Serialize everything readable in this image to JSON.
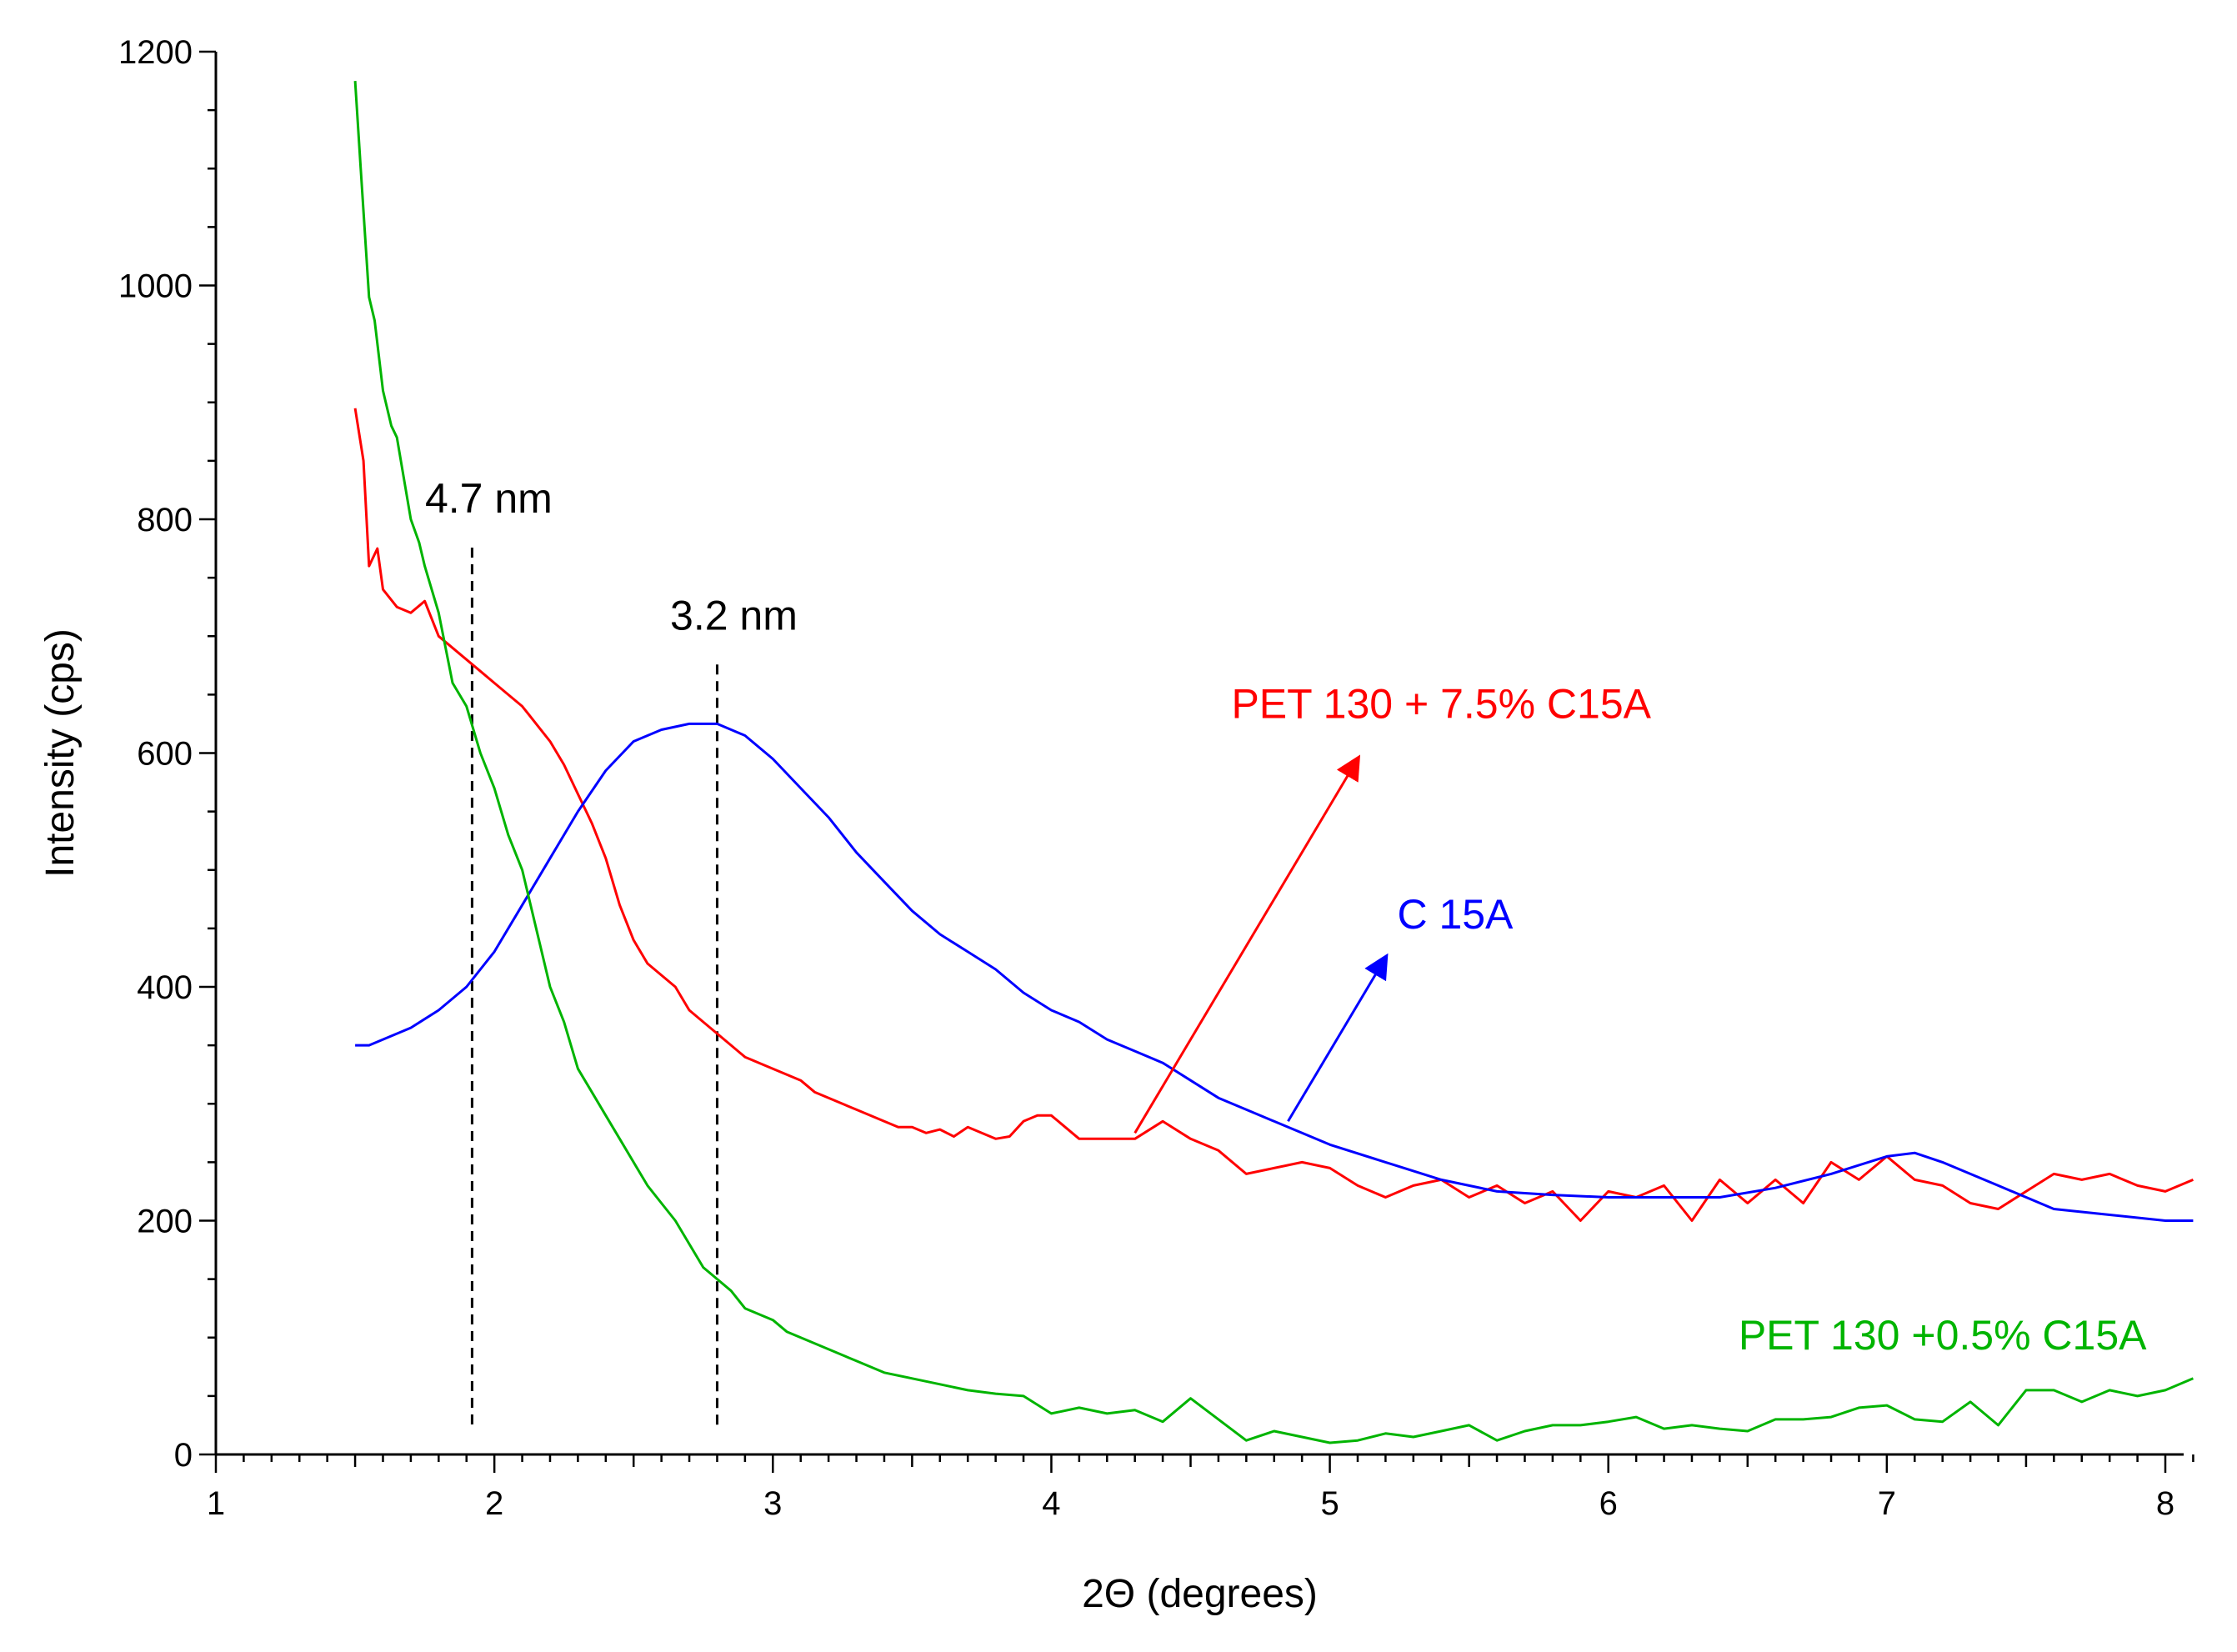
{
  "chart_data": {
    "type": "line",
    "title": "",
    "xlabel": "2Θ (degrees)",
    "ylabel": "Intensity (cps)",
    "xlim": [
      1,
      8.1
    ],
    "ylim": [
      0,
      1200
    ],
    "x_ticks": [
      1,
      2,
      3,
      4,
      5,
      6,
      7,
      8
    ],
    "x_tick_labels": [
      "1",
      "2",
      "3",
      "4",
      "5",
      "6",
      "7",
      "8"
    ],
    "y_ticks": [
      0,
      200,
      400,
      600,
      800,
      1000,
      1200
    ],
    "y_tick_labels": [
      "0",
      "200",
      "400",
      "600",
      "800",
      "1000",
      "1200"
    ],
    "grid": false,
    "series": [
      {
        "name": "PET 130 + 7.5% C15A",
        "color": "#ff0000",
        "x": [
          1.5,
          1.53,
          1.55,
          1.58,
          1.6,
          1.65,
          1.7,
          1.75,
          1.8,
          1.85,
          1.9,
          1.95,
          2.0,
          2.05,
          2.1,
          2.15,
          2.2,
          2.25,
          2.3,
          2.35,
          2.4,
          2.45,
          2.5,
          2.55,
          2.6,
          2.65,
          2.7,
          2.75,
          2.8,
          2.85,
          2.9,
          2.95,
          3.0,
          3.05,
          3.1,
          3.15,
          3.2,
          3.25,
          3.3,
          3.35,
          3.4,
          3.45,
          3.5,
          3.55,
          3.6,
          3.65,
          3.7,
          3.75,
          3.8,
          3.85,
          3.9,
          3.95,
          4.0,
          4.1,
          4.2,
          4.3,
          4.4,
          4.5,
          4.6,
          4.7,
          4.8,
          4.9,
          5.0,
          5.1,
          5.2,
          5.3,
          5.4,
          5.5,
          5.6,
          5.7,
          5.8,
          5.9,
          6.0,
          6.1,
          6.2,
          6.3,
          6.4,
          6.5,
          6.6,
          6.7,
          6.8,
          6.9,
          7.0,
          7.1,
          7.2,
          7.3,
          7.4,
          7.5,
          7.6,
          7.7,
          7.8,
          7.9,
          8.0,
          8.1
        ],
        "y": [
          895,
          850,
          760,
          775,
          740,
          725,
          720,
          730,
          700,
          690,
          680,
          670,
          660,
          650,
          640,
          625,
          610,
          590,
          565,
          540,
          510,
          470,
          440,
          420,
          410,
          400,
          380,
          370,
          360,
          350,
          340,
          335,
          330,
          325,
          320,
          310,
          305,
          300,
          295,
          290,
          285,
          280,
          280,
          275,
          278,
          272,
          280,
          275,
          270,
          272,
          285,
          290,
          290,
          270,
          270,
          270,
          285,
          270,
          260,
          240,
          245,
          250,
          245,
          230,
          220,
          230,
          235,
          220,
          230,
          215,
          225,
          200,
          225,
          220,
          230,
          200,
          235,
          215,
          235,
          215,
          250,
          235,
          255,
          235,
          230,
          215,
          210,
          225,
          240,
          235,
          240,
          230,
          225,
          235
        ]
      },
      {
        "name": "C 15A",
        "color": "#0000ff",
        "x": [
          1.5,
          1.55,
          1.6,
          1.7,
          1.8,
          1.9,
          2.0,
          2.1,
          2.2,
          2.3,
          2.4,
          2.5,
          2.6,
          2.7,
          2.8,
          2.9,
          3.0,
          3.1,
          3.2,
          3.3,
          3.4,
          3.5,
          3.6,
          3.7,
          3.8,
          3.9,
          4.0,
          4.1,
          4.2,
          4.3,
          4.4,
          4.5,
          4.6,
          4.7,
          4.8,
          4.9,
          5.0,
          5.2,
          5.4,
          5.6,
          5.8,
          6.0,
          6.2,
          6.4,
          6.6,
          6.8,
          7.0,
          7.1,
          7.2,
          7.4,
          7.6,
          7.8,
          8.0,
          8.1
        ],
        "y": [
          350,
          350,
          355,
          365,
          380,
          400,
          430,
          470,
          510,
          550,
          585,
          610,
          620,
          625,
          625,
          615,
          595,
          570,
          545,
          515,
          490,
          465,
          445,
          430,
          415,
          395,
          380,
          370,
          355,
          345,
          335,
          320,
          305,
          295,
          285,
          275,
          265,
          250,
          235,
          225,
          222,
          220,
          220,
          220,
          228,
          240,
          255,
          258,
          250,
          230,
          210,
          205,
          200,
          200
        ]
      },
      {
        "name": "PET 130 +0.5% C15A",
        "color": "#00b400",
        "x": [
          1.5,
          1.52,
          1.55,
          1.57,
          1.6,
          1.63,
          1.65,
          1.7,
          1.73,
          1.75,
          1.8,
          1.85,
          1.9,
          1.95,
          2.0,
          2.05,
          2.1,
          2.15,
          2.2,
          2.25,
          2.3,
          2.35,
          2.4,
          2.45,
          2.5,
          2.55,
          2.6,
          2.65,
          2.7,
          2.75,
          2.8,
          2.85,
          2.9,
          2.95,
          3.0,
          3.05,
          3.1,
          3.15,
          3.2,
          3.25,
          3.3,
          3.35,
          3.4,
          3.5,
          3.6,
          3.7,
          3.8,
          3.9,
          4.0,
          4.1,
          4.2,
          4.3,
          4.4,
          4.5,
          4.6,
          4.7,
          4.8,
          4.9,
          5.0,
          5.1,
          5.2,
          5.3,
          5.4,
          5.5,
          5.6,
          5.7,
          5.8,
          5.9,
          6.0,
          6.1,
          6.2,
          6.3,
          6.4,
          6.5,
          6.6,
          6.7,
          6.8,
          6.9,
          7.0,
          7.1,
          7.2,
          7.3,
          7.4,
          7.5,
          7.6,
          7.7,
          7.8,
          7.9,
          8.0,
          8.1
        ],
        "y": [
          1175,
          1100,
          990,
          970,
          910,
          880,
          870,
          800,
          780,
          760,
          720,
          660,
          640,
          600,
          570,
          530,
          500,
          450,
          400,
          370,
          330,
          310,
          290,
          270,
          250,
          230,
          215,
          200,
          180,
          160,
          150,
          140,
          125,
          120,
          115,
          105,
          100,
          95,
          90,
          85,
          80,
          75,
          70,
          65,
          60,
          55,
          52,
          50,
          35,
          40,
          35,
          38,
          28,
          48,
          30,
          12,
          20,
          15,
          10,
          12,
          18,
          15,
          20,
          25,
          12,
          20,
          25,
          25,
          28,
          32,
          22,
          25,
          22,
          20,
          30,
          30,
          32,
          40,
          42,
          30,
          28,
          45,
          25,
          55,
          55,
          45,
          55,
          50,
          55,
          65
        ]
      }
    ],
    "vertical_markers": [
      {
        "x": 1.92,
        "y_top": 790,
        "label": "4.7 nm"
      },
      {
        "x": 2.8,
        "y_top": 690,
        "label": "3.2 nm"
      }
    ],
    "annotations": [
      {
        "text": "PET 130 + 7.5% C15A",
        "color": "#ff0000",
        "arrow_from": [
          4.3,
          275
        ],
        "arrow_to": [
          5.1,
          595
        ],
        "text_at": [
          5.4,
          630
        ]
      },
      {
        "text": "C 15A",
        "color": "#0000ff",
        "arrow_from": [
          4.85,
          285
        ],
        "arrow_to": [
          5.2,
          425
        ],
        "text_at": [
          5.45,
          450
        ]
      },
      {
        "text": "PET 130 +0.5% C15A",
        "color": "#00b400",
        "text_at": [
          7.2,
          90
        ]
      }
    ]
  }
}
